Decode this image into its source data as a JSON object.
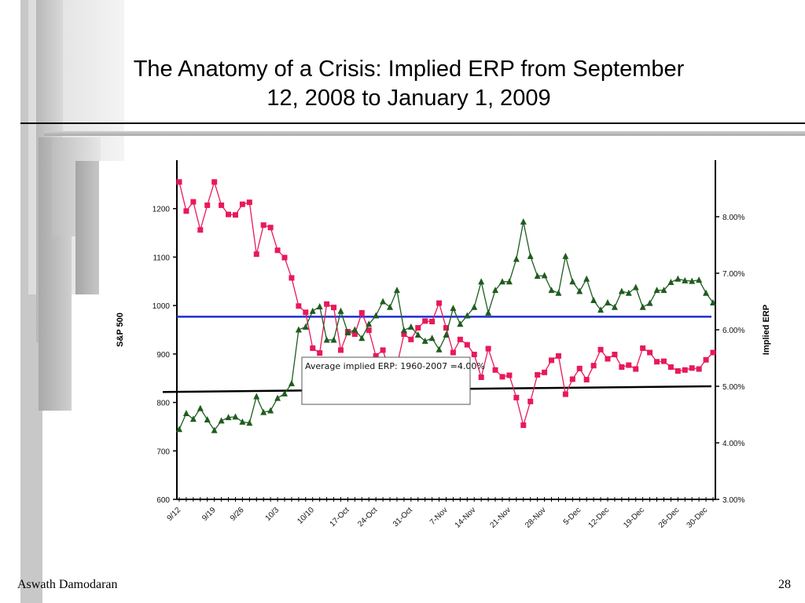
{
  "slide": {
    "title_line1": "The Anatomy of a Crisis: Implied ERP from September",
    "title_line2": "12, 2008 to January 1, 2009",
    "author": "Aswath Damodaran",
    "page_number": "28"
  },
  "chart_data": {
    "type": "line",
    "ylabel_left": "S&P 500",
    "ylabel_right": "Implied ERP",
    "ylim_left": [
      600,
      1300
    ],
    "yticks_left": [
      "600",
      "700",
      "800",
      "900",
      "1000",
      "1100",
      "1200"
    ],
    "ylim_right": [
      3.0,
      9.0
    ],
    "yticks_right": [
      "3.00%",
      "4.00%",
      "5.00%",
      "6.00%",
      "7.00%",
      "8.00%"
    ],
    "x_tick_labels": [
      "9/12",
      "9/19",
      "9/26",
      "10/3",
      "10/10",
      "17-Oct",
      "24-Oct",
      "31-Oct",
      "7-Nov",
      "14-Nov",
      "21-Nov",
      "28-Nov",
      "5-Dec",
      "12-Dec",
      "19-Dec",
      "26-Dec",
      "30-Dec"
    ],
    "series": [
      {
        "axis": "left",
        "color": "#e8195a",
        "marker": "square",
        "values": [
          1255,
          1195,
          1214,
          1156,
          1207,
          1255,
          1207,
          1188,
          1187,
          1209,
          1213,
          1106,
          1166,
          1161,
          1114,
          1099,
          1057,
          999,
          986,
          912,
          902,
          1003,
          996,
          908,
          946,
          941,
          985,
          949,
          896,
          908,
          861,
          876,
          941,
          930,
          954,
          968,
          967,
          1005,
          954,
          903,
          930,
          919,
          899,
          852,
          911,
          867,
          853,
          856,
          810,
          753,
          802,
          857,
          862,
          887,
          896,
          817,
          848,
          870,
          847,
          876,
          909,
          890,
          899,
          873,
          877,
          869,
          912,
          903,
          884,
          885,
          873,
          865,
          867,
          871,
          869,
          888,
          903
        ]
      },
      {
        "axis": "right",
        "color": "#1f5c1f",
        "marker": "triangle",
        "values": [
          4.24,
          4.52,
          4.42,
          4.61,
          4.41,
          4.22,
          4.39,
          4.45,
          4.46,
          4.37,
          4.35,
          4.82,
          4.54,
          4.57,
          4.79,
          4.87,
          5.05,
          6.0,
          6.05,
          6.33,
          6.41,
          5.82,
          5.82,
          6.33,
          5.95,
          6.0,
          5.85,
          6.1,
          6.25,
          6.5,
          6.4,
          6.7,
          5.99,
          6.05,
          5.91,
          5.8,
          5.85,
          5.65,
          5.91,
          6.38,
          6.1,
          6.25,
          6.4,
          6.85,
          6.3,
          6.7,
          6.85,
          6.85,
          7.25,
          7.91,
          7.3,
          6.95,
          6.96,
          6.7,
          6.65,
          7.3,
          6.85,
          6.68,
          6.9,
          6.52,
          6.35,
          6.48,
          6.4,
          6.68,
          6.65,
          6.75,
          6.4,
          6.47,
          6.7,
          6.7,
          6.84,
          6.9,
          6.87,
          6.86,
          6.88,
          6.65,
          6.48
        ]
      }
    ],
    "reference_lines": [
      {
        "axis": "left",
        "value": 977,
        "color": "#1f2ed0",
        "label": ""
      },
      {
        "axis": "right",
        "value": 4.9,
        "value_end": 5.0,
        "color": "#000000",
        "label": ""
      }
    ],
    "annotation": "Average implied ERP: 1960-2007 =4.00%"
  }
}
